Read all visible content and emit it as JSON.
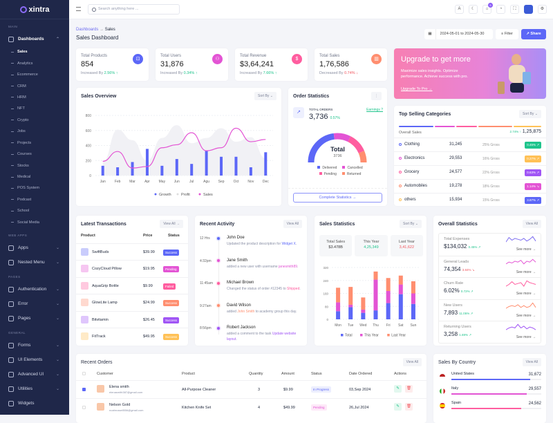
{
  "app": {
    "brand": "xintra"
  },
  "sidebar": {
    "main_label": "Main",
    "dashboards": "Dashboards",
    "sub": [
      "Sales",
      "Analytics",
      "Ecommerce",
      "CRM",
      "HRM",
      "NFT",
      "Crypto",
      "Jobs",
      "Projects",
      "Courses",
      "Stocks",
      "Medical",
      "POS System",
      "Podcast",
      "School",
      "Social Media"
    ],
    "webapps_label": "Web Apps",
    "webapps": [
      "Apps",
      "Nested Menu"
    ],
    "pages_label": "Pages",
    "pages": [
      "Authentication",
      "Error",
      "Pages"
    ],
    "general_label": "General",
    "general": [
      "Forms",
      "UI Elements",
      "Advanced UI",
      "Utilities",
      "Widgets"
    ]
  },
  "header": {
    "search_placeholder": "Search anything here ...",
    "cart_count": "5"
  },
  "page": {
    "breadcrumb_root": "Dashboards",
    "breadcrumb_sep": "→",
    "breadcrumb_current": "Sales",
    "title": "Sales Dashboard",
    "date_range": "2024-05-01 to 2024-05-30",
    "filter": "Filter",
    "share": "Share"
  },
  "stats": [
    {
      "label": "Total Products",
      "value": "854",
      "trend_text": "Increased By",
      "trend": "2.56%",
      "dir": "up",
      "color": "#5c67f7",
      "icon": "cart-icon"
    },
    {
      "label": "Total Users",
      "value": "31,876",
      "trend_text": "Increased By",
      "trend": "0.34%",
      "dir": "up",
      "color": "#e354d4",
      "icon": "users-icon"
    },
    {
      "label": "Total Revenue",
      "value": "$3,64,241",
      "trend_text": "Increased By",
      "trend": "7.66%",
      "dir": "up",
      "color": "#ff5d9f",
      "icon": "dollar-icon"
    },
    {
      "label": "Total Sales",
      "value": "1,76,586",
      "trend_text": "Decreased By",
      "trend": "0.74%",
      "dir": "down",
      "color": "#ff8e6f",
      "icon": "chart-icon"
    }
  ],
  "upgrade": {
    "title": "Upgrade to get more",
    "text": "Maximize sales insights. Optimize performance. Achieve success with pro.",
    "link": "Upgrade To Pro →"
  },
  "sales_overview": {
    "title": "Sales Overview",
    "sort": "Sort By"
  },
  "order_stats": {
    "title": "Order Statistics",
    "total_label": "TOTAL ORDERS",
    "total": "3,736",
    "change": "0.57%",
    "earnings": "Earnings ?",
    "gauge_label": "Total",
    "gauge_value": "3736",
    "legend": [
      "Delivered",
      "Cancelled",
      "Pending",
      "Returned"
    ],
    "gauge_fractions": [
      0.46,
      0.19,
      0.22,
      0.13
    ],
    "colors": [
      "#5c67f7",
      "#e354d4",
      "#ff5d9f",
      "#ff8e6f"
    ],
    "button": "Complete Statistics →"
  },
  "top_categories": {
    "title": "Top Selling Categories",
    "sort": "Sort By",
    "overall_label": "Overall Sales",
    "overall_change": "2.74% ↑",
    "overall_value": "1,25,875",
    "rows": [
      {
        "name": "Clothing",
        "value": "31,245",
        "gross": "25% Gross",
        "change": "0.45% ↗",
        "color": "#5c67f7",
        "badge": "#1fc48c"
      },
      {
        "name": "Electronics",
        "value": "29,553",
        "gross": "16% Gross",
        "change": "0.27% ↗",
        "color": "#e354d4",
        "badge": "#ffc156"
      },
      {
        "name": "Grocery",
        "value": "24,577",
        "gross": "22% Gross",
        "change": "0.63% ↗",
        "color": "#ff5d9f",
        "badge": "#a055f5"
      },
      {
        "name": "Automobiles",
        "value": "19,278",
        "gross": "18% Gross",
        "change": "1.14% ↘",
        "color": "#ff8e6f",
        "badge": "#e354d4"
      },
      {
        "name": "others",
        "value": "15,934",
        "gross": "15% Gross",
        "change": "3.87% ↗",
        "color": "#ffc156",
        "badge": "#5c67f7"
      }
    ]
  },
  "transactions": {
    "title": "Latest Transactions",
    "view_all": "View All →",
    "headers": [
      "Product",
      "Price",
      "Status"
    ],
    "rows": [
      {
        "product": "SwiftBuds",
        "price": "$39.99",
        "status": "Success",
        "color": "#5c67f7"
      },
      {
        "product": "CozyCloud Pillow",
        "price": "$19.95",
        "status": "Pending",
        "color": "#e354d4"
      },
      {
        "product": "AquaGrip Bottle",
        "price": "$9.99",
        "status": "Failed",
        "color": "#ff5d9f"
      },
      {
        "product": "GlowLite Lamp",
        "price": "$24.99",
        "status": "Success",
        "color": "#ff8e6f"
      },
      {
        "product": "Bitvitamin",
        "price": "$26.45",
        "status": "Success",
        "color": "#a055f5"
      },
      {
        "product": "FitTrack",
        "price": "$49.95",
        "status": "Success",
        "color": "#ffc156"
      }
    ]
  },
  "activity": {
    "title": "Recent Activity",
    "view_all": "View All",
    "items": [
      {
        "time": "12 Hrs",
        "name": "John Doe",
        "pre": "Updated the product description for ",
        "hl": "Widget X",
        "post": ".",
        "color": "#5c67f7"
      },
      {
        "time": "4:32pm",
        "name": "Jane Smith",
        "pre": "added a new user with username ",
        "hl": "janesmith89",
        "post": ".",
        "color": "#e354d4"
      },
      {
        "time": "11:45am",
        "name": "Michael Brown",
        "pre": "Changed the status of order #12345 to ",
        "hl": "Shipped",
        "post": ".",
        "color": "#ff5d9f"
      },
      {
        "time": "9:27am",
        "name": "David Wilson",
        "pre": "added ",
        "hl": "John Smith",
        "post": " to academy group this day.",
        "color": "#ff8e6f"
      },
      {
        "time": "8:56pm",
        "name": "Robert Jackson",
        "pre": "added a comment to the task ",
        "hl": "Update website layout",
        "post": ".",
        "color": "#a055f5"
      }
    ]
  },
  "sales_stats": {
    "title": "Sales Statistics",
    "sort": "Sort By",
    "boxes": [
      {
        "label": "Total Sales",
        "value": "$3.478B"
      },
      {
        "label": "This Year",
        "value": "4,25,349"
      },
      {
        "label": "Last Year",
        "value": "3,41,622"
      }
    ]
  },
  "overall": {
    "title": "Overall Statistics",
    "view_all": "View All",
    "see_more": "See more →",
    "items": [
      {
        "label": "Total Expenses",
        "value": "$134,032",
        "change": "0.45% ↗",
        "dir": "up",
        "color": "#7c6cf0",
        "spark": [
          3,
          8,
          5,
          7,
          6,
          5,
          7,
          4,
          6,
          9,
          4
        ]
      },
      {
        "label": "General Leads",
        "value": "74,354",
        "change": "3.84% ↘",
        "dir": "down",
        "color": "#e354d4",
        "spark": [
          4,
          6,
          5,
          7,
          6,
          8,
          4,
          7,
          6,
          9,
          6
        ]
      },
      {
        "label": "Churn Rate",
        "value": "6.02%",
        "change": "0.72% ↗",
        "dir": "up",
        "color": "#ff5d9f",
        "spark": [
          3,
          5,
          8,
          5,
          6,
          7,
          3,
          9,
          7,
          6,
          5
        ]
      },
      {
        "label": "New Users",
        "value": "7,893",
        "change": "11.05% ↗",
        "dir": "up",
        "color": "#ff8e6f",
        "spark": [
          3,
          5,
          6,
          5,
          7,
          4,
          6,
          4,
          5,
          9,
          4
        ]
      },
      {
        "label": "Returning Users",
        "value": "3,258",
        "change": "1.69% ↗",
        "dir": "up",
        "color": "#a055f5",
        "spark": [
          3,
          5,
          6,
          5,
          9,
          5,
          7,
          4,
          6,
          5,
          3
        ]
      }
    ]
  },
  "recent_orders": {
    "title": "Recent Orders",
    "view_all": "View All",
    "headers": [
      "Customer",
      "Product",
      "Quantity",
      "Amount",
      "Status",
      "Date Ordered",
      "Actions"
    ],
    "rows": [
      {
        "name": "Elena smith",
        "email": "elenasmith387@gmail.com",
        "product": "All-Purpose Cleaner",
        "qty": "3",
        "amount": "$9.99",
        "status": "In Progress",
        "date": "03,Sep 2024",
        "checked": true
      },
      {
        "name": "Nelson Gold",
        "email": "noahrussell556@gmail.com",
        "product": "Kitchen Knife Set",
        "qty": "4",
        "amount": "$49.99",
        "status": "Pending",
        "date": "26,Jul 2024",
        "checked": false
      }
    ]
  },
  "countries": {
    "title": "Sales By Country",
    "view_all": "View All",
    "rows": [
      {
        "name": "United States",
        "value": "31,672",
        "pct": 88,
        "color": "#5c67f7"
      },
      {
        "name": "Italy",
        "value": "29,557",
        "pct": 84,
        "color": "#e354d4"
      },
      {
        "name": "Spain",
        "value": "24,562",
        "pct": 78,
        "color": "#ff5d9f"
      }
    ]
  },
  "chart_data": [
    {
      "type": "bar",
      "title": "Sales Overview",
      "categories": [
        "Jan",
        "Feb",
        "Mar",
        "Apr",
        "May",
        "Jun",
        "Jul",
        "Agu",
        "Sep",
        "Oct",
        "Nov",
        "Dec"
      ],
      "series": [
        {
          "name": "Growth",
          "type": "bar",
          "color": "#5c67f7",
          "values": [
            130,
            110,
            180,
            355,
            130,
            220,
            155,
            330,
            250,
            250,
            110,
            310
          ]
        },
        {
          "name": "Profit",
          "type": "area",
          "color": "#ececf2",
          "values": [
            180,
            610,
            470,
            200,
            500,
            670,
            430,
            500,
            630,
            450,
            510,
            230
          ]
        },
        {
          "name": "Sales",
          "type": "line",
          "color": "#e354d4",
          "values": [
            190,
            320,
            100,
            120,
            370,
            410,
            570,
            330,
            370,
            630,
            450,
            480
          ]
        }
      ],
      "ylim": [
        0,
        800
      ],
      "yticks": [
        0,
        200,
        400,
        600,
        800
      ],
      "legend": "bottom"
    },
    {
      "type": "bar",
      "stacked": true,
      "title": "Sales Statistics",
      "categories": [
        "Mon",
        "Tue",
        "Wed",
        "Thu",
        "Fri",
        "Sat",
        "Sun"
      ],
      "series": [
        {
          "name": "Total",
          "color": "#5c67f7",
          "values": [
            50,
            75,
            40,
            55,
            100,
            155,
            95
          ]
        },
        {
          "name": "This Year",
          "color": "#e354d4",
          "values": [
            55,
            15,
            20,
            190,
            75,
            60,
            65
          ]
        },
        {
          "name": "Last Year",
          "color": "#ff8e6f",
          "values": [
            90,
            110,
            75,
            50,
            80,
            55,
            75
          ]
        }
      ],
      "ylim": [
        0,
        320
      ],
      "yticks": [
        0,
        80,
        160,
        240,
        320
      ],
      "legend": "bottom"
    }
  ]
}
